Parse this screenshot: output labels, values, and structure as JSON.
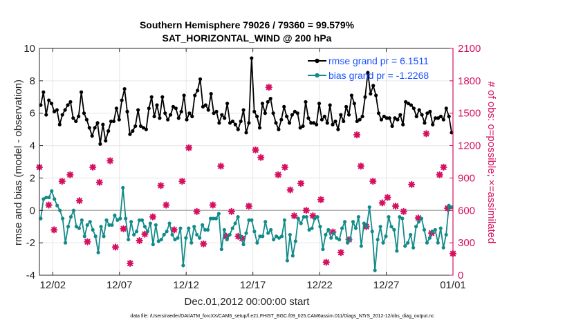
{
  "chart_data": {
    "type": "line",
    "title": "Southern Hemisphere 79026 / 79360 = 99.579%",
    "subtitle": "SAT_HORIZONTAL_WIND @ 200 hPa",
    "xlabel": "Dec.01,2012 00:00:00 start",
    "ylabel": "rmse and bias (model - observation)",
    "y2label": "# of obs: o=possible; ×=assimilated",
    "xlim": [
      0,
      31
    ],
    "ylim": [
      -4,
      10
    ],
    "y2lim": [
      0,
      2100
    ],
    "x_ticks": [
      1,
      6,
      11,
      16,
      21,
      26,
      31
    ],
    "x_tick_labels": [
      "12/02",
      "12/07",
      "12/12",
      "12/17",
      "12/22",
      "12/27",
      "01/01"
    ],
    "y_ticks": [
      "-4",
      "-2",
      "0",
      "2",
      "4",
      "6",
      "8",
      "10"
    ],
    "y2_ticks": [
      "0",
      "300",
      "600",
      "900",
      "1200",
      "1500",
      "1800",
      "2100"
    ],
    "grid": true,
    "legend_position": "top-right",
    "colors": {
      "rmse": "#000000",
      "bias": "#138a8a",
      "obs": "#d6105f",
      "zero_line": "#b0b0b0",
      "legend_text": "#1a53ff"
    },
    "series": [
      {
        "name": "rmse grand pr = 6.1511",
        "key": "rmse",
        "style": "line-marker",
        "values": [
          6.5,
          7.3,
          5.9,
          6.8,
          6.6,
          6.1,
          6.2,
          5.3,
          5.9,
          6.2,
          6.5,
          6.7,
          5.7,
          5.5,
          5.8,
          7.3,
          6.0,
          5.6,
          5.1,
          4.6,
          5.1,
          5.4,
          4.1,
          5.3,
          4.3,
          4.9,
          5.5,
          5.5,
          6.3,
          5.6,
          6.8,
          7.5,
          6.1,
          4.7,
          4.9,
          5.2,
          6.2,
          5.2,
          5.1,
          5.0,
          6.3,
          7.0,
          5.8,
          6.5,
          5.7,
          7.0,
          6.0,
          5.6,
          5.9,
          6.4,
          6.3,
          5.7,
          6.1,
          7.1,
          5.6,
          6.0,
          5.8,
          7.1,
          7.4,
          8.1,
          6.4,
          6.5,
          6.2,
          7.2,
          6.0,
          6.1,
          5.4,
          5.9,
          5.7,
          6.6,
          5.4,
          5.5,
          5.3,
          5.0,
          5.5,
          6.2,
          4.8,
          5.4,
          9.4,
          6.1,
          5.8,
          5.1,
          6.6,
          6.0,
          6.7,
          6.9,
          6.0,
          5.4,
          5.0,
          5.6,
          6.4,
          5.8,
          5.4,
          5.9,
          6.1,
          6.0,
          5.1,
          5.2,
          6.7,
          5.7,
          5.4,
          5.4,
          5.3,
          6.6,
          5.6,
          5.8,
          5.4,
          6.5,
          5.3,
          5.5,
          5.0,
          5.9,
          5.5,
          6.4,
          5.9,
          7.1,
          6.6,
          5.5,
          5.6,
          5.8,
          7.0,
          8.5,
          7.2,
          7.7,
          7.1,
          6.0,
          5.6,
          5.8,
          5.7,
          5.7,
          5.2,
          5.7,
          5.6,
          5.9,
          5.3,
          6.7,
          6.6,
          6.5,
          6.3,
          5.8,
          6.2,
          5.9,
          5.4,
          6.0,
          6.1,
          5.3,
          5.7,
          5.7,
          5.8,
          5.6,
          6.3,
          5.8,
          4.8
        ]
      },
      {
        "name": "bias grand pr = -1.2268",
        "key": "bias",
        "style": "line-marker",
        "values": [
          -0.5,
          0.7,
          0.8,
          0.8,
          1.2,
          0.7,
          0.3,
          0.0,
          -0.5,
          -2.0,
          -1.0,
          -0.4,
          0.0,
          -1.0,
          -1.1,
          -0.6,
          -1.6,
          -0.9,
          -0.7,
          -1.2,
          -1.6,
          -2.6,
          -1.0,
          -1.6,
          -0.6,
          -0.9,
          -0.9,
          -0.3,
          -0.6,
          -0.5,
          1.4,
          -0.5,
          -1.8,
          -0.7,
          -1.5,
          -1.3,
          -0.6,
          -0.6,
          -1.0,
          -1.3,
          -0.8,
          -2.1,
          -0.9,
          -1.9,
          -1.8,
          -1.5,
          -1.3,
          -0.8,
          -1.5,
          -1.8,
          -1.7,
          -1.1,
          -3.4,
          -1.7,
          -1.1,
          -2.0,
          -1.0,
          -1.5,
          -1.7,
          -0.9,
          -1.2,
          -1.2,
          -0.5,
          -0.5,
          -0.5,
          -0.2,
          -2.4,
          -1.2,
          -1.8,
          -1.5,
          -1.1,
          -0.8,
          -0.4,
          -1.6,
          -2.1,
          -1.4,
          -0.6,
          -0.6,
          -1.3,
          -2.0,
          -1.6,
          -1.6,
          -0.7,
          -1.4,
          -1.2,
          -1.8,
          -1.6,
          -1.7,
          -1.6,
          -0.6,
          -3.1,
          -1.5,
          -2.8,
          -1.9,
          -0.5,
          -0.8,
          -0.4,
          -0.4,
          -1.2,
          -1.1,
          -0.5,
          -0.4,
          -1.0,
          -2.4,
          -1.5,
          -1.2,
          -1.7,
          -1.4,
          -1.7,
          -1.8,
          -1.1,
          -0.7,
          -2.0,
          -1.8,
          -0.7,
          -1.1,
          -0.4,
          -2.2,
          -0.8,
          -1.0,
          0.2,
          -1.3,
          -3.7,
          -1.8,
          -1.0,
          -2.0,
          -1.6,
          -0.4,
          -1.0,
          -1.2,
          -2.5,
          -0.4,
          -0.5,
          -2.2,
          -2.0,
          -1.5,
          -2.3,
          -1.0,
          -0.7,
          -0.5,
          -1.2,
          -2.0,
          -1.7,
          -1.3,
          -1.2,
          -2.0,
          -1.1,
          -2.3,
          -1.5,
          0.3,
          0.2
        ]
      },
      {
        "name": "obs count",
        "key": "obs",
        "style": "markers-only",
        "x": [
          0.0,
          0.7,
          1.1,
          1.7,
          2.3,
          3.0,
          3.6,
          4.0,
          4.5,
          5.3,
          5.7,
          6.3,
          6.8,
          7.5,
          7.9,
          8.5,
          9.1,
          9.5,
          10.1,
          10.7,
          11.2,
          11.8,
          12.3,
          13.0,
          13.6,
          14.0,
          14.4,
          14.9,
          15.2,
          15.7,
          16.2,
          16.6,
          17.2,
          17.9,
          18.4,
          18.8,
          19.1,
          19.6,
          20.0,
          20.5,
          21.1,
          21.5,
          22.0,
          22.6,
          23.2,
          23.8,
          24.1,
          24.5,
          25.0,
          25.7,
          26.1,
          26.7,
          27.3,
          27.9,
          28.4,
          29.0,
          29.4,
          30.0,
          30.3,
          30.6,
          31.0
        ],
        "values": [
          1000,
          650,
          420,
          870,
          930,
          690,
          310,
          1000,
          860,
          1060,
          260,
          430,
          110,
          320,
          380,
          540,
          830,
          650,
          420,
          870,
          1180,
          590,
          290,
          650,
          1010,
          360,
          590,
          360,
          340,
          640,
          1160,
          1090,
          1740,
          930,
          1000,
          790,
          550,
          850,
          600,
          550,
          700,
          120,
          400,
          210,
          330,
          1300,
          1010,
          450,
          870,
          670,
          720,
          640,
          590,
          840,
          530,
          1310,
          390,
          930,
          1000,
          620,
          200
        ]
      }
    ]
  },
  "footer": "data file: /Users/raeder/DAI/ATM_forcXX/CAM6_setup/f.e21.FHIST_BGC.f09_025.CAM6assim.011/Diags_NTrS_2012-12/obs_diag_output.nc"
}
